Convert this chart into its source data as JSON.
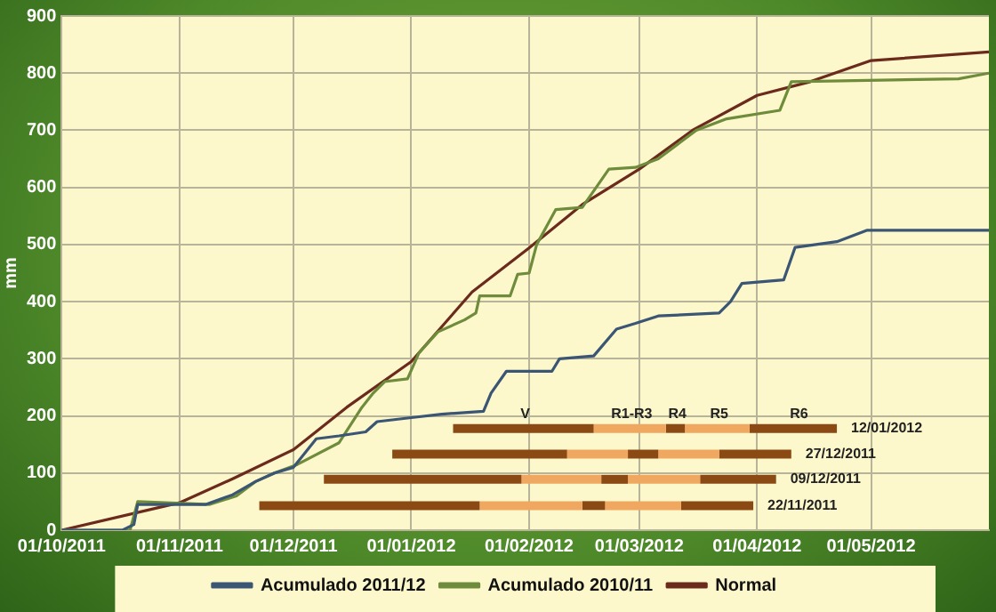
{
  "chart_data": {
    "type": "line",
    "ylabel": "mm",
    "xlim": [
      "2011-10-01",
      "2012-06-01"
    ],
    "xticks": [
      {
        "value": "2011-10-01",
        "label": "01/10/2011"
      },
      {
        "value": "2011-11-01",
        "label": "01/11/2011"
      },
      {
        "value": "2011-12-01",
        "label": "01/12/2011"
      },
      {
        "value": "2012-01-01",
        "label": "01/01/2012"
      },
      {
        "value": "2012-02-01",
        "label": "01/02/2012"
      },
      {
        "value": "2012-03-01",
        "label": "01/03/2012"
      },
      {
        "value": "2012-04-01",
        "label": "01/04/2012"
      },
      {
        "value": "2012-05-01",
        "label": "01/05/2012"
      }
    ],
    "ylim": [
      0,
      900
    ],
    "yticks": [
      0,
      100,
      200,
      300,
      400,
      500,
      600,
      700,
      800,
      900
    ],
    "grid": true,
    "legend": "bottom",
    "marker": "none",
    "line_style": "solid",
    "series": [
      {
        "name": "Acumulado 2011/12",
        "color": "#3b5674",
        "x": [
          "2011-10-01",
          "2011-10-17",
          "2011-10-20",
          "2011-10-21",
          "2011-11-08",
          "2011-11-12",
          "2011-11-15",
          "2011-11-21",
          "2011-11-26",
          "2011-12-01",
          "2011-12-07",
          "2011-12-13",
          "2011-12-20",
          "2011-12-23",
          "2012-01-01",
          "2012-01-09",
          "2012-01-20",
          "2012-01-22",
          "2012-01-26",
          "2012-02-07",
          "2012-02-09",
          "2012-02-18",
          "2012-02-24",
          "2012-02-29",
          "2012-03-06",
          "2012-03-22",
          "2012-03-25",
          "2012-03-28",
          "2012-04-08",
          "2012-04-11",
          "2012-04-22",
          "2012-04-26",
          "2012-04-30",
          "2012-06-01"
        ],
        "values": [
          0,
          0,
          10,
          45,
          45,
          55,
          62,
          85,
          100,
          110,
          160,
          165,
          172,
          190,
          197,
          203,
          208,
          240,
          278,
          278,
          300,
          305,
          352,
          362,
          375,
          380,
          400,
          432,
          438,
          495,
          505,
          515,
          525,
          525
        ]
      },
      {
        "name": "Acumulado 2010/11",
        "color": "#6e8c3c",
        "x": [
          "2011-10-01",
          "2011-10-19",
          "2011-10-21",
          "2011-11-09",
          "2011-11-16",
          "2011-11-21",
          "2011-11-26",
          "2011-12-02",
          "2011-12-13",
          "2011-12-19",
          "2011-12-22",
          "2011-12-25",
          "2011-12-31",
          "2012-01-03",
          "2012-01-08",
          "2012-01-15",
          "2012-01-18",
          "2012-01-19",
          "2012-01-27",
          "2012-01-29",
          "2012-02-01",
          "2012-02-03",
          "2012-02-08",
          "2012-02-15",
          "2012-02-22",
          "2012-02-29",
          "2012-03-06",
          "2012-03-12",
          "2012-03-16",
          "2012-03-24",
          "2012-04-07",
          "2012-04-10",
          "2012-05-24",
          "2012-06-01"
        ],
        "values": [
          0,
          0,
          50,
          45,
          60,
          85,
          100,
          115,
          153,
          215,
          240,
          260,
          265,
          310,
          347,
          368,
          380,
          410,
          410,
          448,
          450,
          500,
          561,
          565,
          632,
          635,
          650,
          680,
          700,
          720,
          735,
          785,
          790,
          800
        ]
      },
      {
        "name": "Normal",
        "color": "#6b2a1c",
        "x": [
          "2011-10-01",
          "2011-11-01",
          "2011-11-15",
          "2011-12-01",
          "2011-12-15",
          "2012-01-01",
          "2012-01-17",
          "2012-02-01",
          "2012-02-15",
          "2012-03-01",
          "2012-03-15",
          "2012-04-01",
          "2012-04-15",
          "2012-05-01",
          "2012-06-01"
        ],
        "values": [
          0,
          48,
          90,
          141,
          215,
          295,
          417,
          494,
          570,
          632,
          700,
          761,
          785,
          822,
          837
        ]
      },
      {
        "color": "#8b4a14",
        "x": [
          "2012-01-12",
          "2012-02-18"
        ],
        "values": [
          178,
          178
        ]
      },
      {
        "color": "#f0a860",
        "x": [
          "2012-02-18",
          "2012-03-08"
        ],
        "values": [
          178,
          178
        ]
      },
      {
        "color": "#8b4a14",
        "x": [
          "2012-03-08",
          "2012-03-13"
        ],
        "values": [
          178,
          178
        ]
      },
      {
        "color": "#f0a860",
        "x": [
          "2012-03-13",
          "2012-03-30"
        ],
        "values": [
          178,
          178
        ]
      },
      {
        "name": "12/01/2012",
        "color": "#8b4a14",
        "x": [
          "2012-03-30",
          "2012-04-22"
        ],
        "values": [
          178,
          178
        ]
      },
      {
        "color": "#8b4a14",
        "x": [
          "2011-12-27",
          "2012-02-11"
        ],
        "values": [
          133,
          133
        ]
      },
      {
        "color": "#f0a860",
        "x": [
          "2012-02-11",
          "2012-02-27"
        ],
        "values": [
          133,
          133
        ]
      },
      {
        "color": "#8b4a14",
        "x": [
          "2012-02-27",
          "2012-03-06"
        ],
        "values": [
          133,
          133
        ]
      },
      {
        "color": "#f0a860",
        "x": [
          "2012-03-06",
          "2012-03-22"
        ],
        "values": [
          133,
          133
        ]
      },
      {
        "name": "27/12/2011",
        "color": "#8b4a14",
        "x": [
          "2012-03-22",
          "2012-04-10"
        ],
        "values": [
          133,
          133
        ]
      },
      {
        "color": "#8b4a14",
        "x": [
          "2011-12-09",
          "2012-01-30"
        ],
        "values": [
          89,
          89
        ]
      },
      {
        "color": "#f0a860",
        "x": [
          "2012-01-30",
          "2012-02-20"
        ],
        "values": [
          89,
          89
        ]
      },
      {
        "color": "#8b4a14",
        "x": [
          "2012-02-20",
          "2012-02-27"
        ],
        "values": [
          89,
          89
        ]
      },
      {
        "color": "#f0a860",
        "x": [
          "2012-02-27",
          "2012-03-17"
        ],
        "values": [
          89,
          89
        ]
      },
      {
        "name": "09/12/2011",
        "color": "#8b4a14",
        "x": [
          "2012-03-17",
          "2012-04-06"
        ],
        "values": [
          89,
          89
        ]
      },
      {
        "color": "#8b4a14",
        "x": [
          "2011-11-22",
          "2012-01-19"
        ],
        "values": [
          43,
          43
        ]
      },
      {
        "color": "#f0a860",
        "x": [
          "2012-01-19",
          "2012-02-15"
        ],
        "values": [
          43,
          43
        ]
      },
      {
        "color": "#8b4a14",
        "x": [
          "2012-02-15",
          "2012-02-21"
        ],
        "values": [
          43,
          43
        ]
      },
      {
        "color": "#f0a860",
        "x": [
          "2012-02-21",
          "2012-03-12"
        ],
        "values": [
          43,
          43
        ]
      },
      {
        "name": "22/11/2011",
        "color": "#8b4a14",
        "x": [
          "2012-03-12",
          "2012-03-31"
        ],
        "values": [
          43,
          43
        ]
      }
    ],
    "annotations": [
      {
        "text": "V",
        "x": "2012-01-31",
        "y": 178
      },
      {
        "text": "R1-R3",
        "x": "2012-02-28",
        "y": 178
      },
      {
        "text": "R4",
        "x": "2012-03-11",
        "y": 178
      },
      {
        "text": "R5",
        "x": "2012-03-22",
        "y": 178
      },
      {
        "text": "R6",
        "x": "2012-04-12",
        "y": 178
      }
    ]
  }
}
